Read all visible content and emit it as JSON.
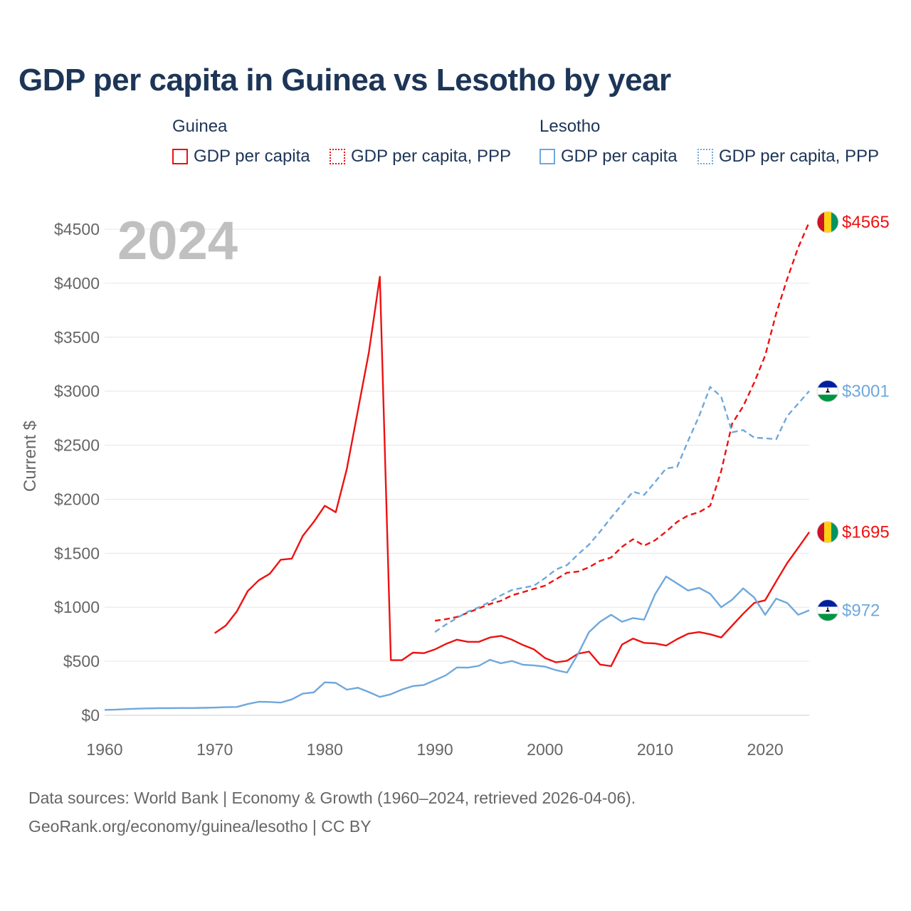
{
  "title": "GDP per capita in Guinea vs Lesotho by year",
  "legend": {
    "guinea": {
      "group": "Guinea",
      "gdp": "GDP per capita",
      "ppp": "GDP per capita, PPP"
    },
    "lesotho": {
      "group": "Lesotho",
      "gdp": "GDP per capita",
      "ppp": "GDP per capita, PPP"
    }
  },
  "year_label": "2024",
  "footer": {
    "line1": "Data sources: World Bank | Economy & Growth (1960–2024, retrieved 2026-04-06).",
    "line2": "GeoRank.org/economy/guinea/lesotho | CC BY"
  },
  "colors": {
    "guinea": "#ee1111",
    "lesotho": "#6fa8dc",
    "title": "#1d3557",
    "axis_text": "#666666",
    "year_text": "#c0c0c0"
  },
  "icons": {
    "guinea": "guinea-flag-icon",
    "lesotho": "lesotho-flag-icon"
  },
  "chart_data": {
    "type": "line",
    "title": "GDP per capita in Guinea vs Lesotho by year",
    "xlabel": "",
    "ylabel": "Current $",
    "xlim": [
      1960,
      2024
    ],
    "ylim": [
      0,
      4500
    ],
    "x_ticks": [
      1960,
      1970,
      1980,
      1990,
      2000,
      2010,
      2020
    ],
    "y_ticks": [
      0,
      500,
      1000,
      1500,
      2000,
      2500,
      3000,
      3500,
      4000,
      4500
    ],
    "y_tick_labels": [
      "$0",
      "$500",
      "$1000",
      "$1500",
      "$2000",
      "$2500",
      "$3000",
      "$3500",
      "$4000",
      "$4500"
    ],
    "grid": true,
    "series": [
      {
        "name": "Guinea GDP per capita",
        "country": "guinea",
        "style": "solid",
        "end_label": "$1695",
        "x": [
          1970,
          1971,
          1972,
          1973,
          1974,
          1975,
          1976,
          1977,
          1978,
          1979,
          1980,
          1981,
          1982,
          1983,
          1984,
          1985,
          1986,
          1987,
          1988,
          1989,
          1990,
          1991,
          1992,
          1993,
          1994,
          1995,
          1996,
          1997,
          1998,
          1999,
          2000,
          2001,
          2002,
          2003,
          2004,
          2005,
          2006,
          2007,
          2008,
          2009,
          2010,
          2011,
          2012,
          2013,
          2014,
          2015,
          2016,
          2017,
          2018,
          2019,
          2020,
          2021,
          2022,
          2023,
          2024
        ],
        "values": [
          760,
          830,
          960,
          1150,
          1250,
          1310,
          1440,
          1450,
          1660,
          1790,
          1940,
          1880,
          2280,
          2820,
          3360,
          4060,
          510,
          510,
          580,
          575,
          610,
          660,
          700,
          680,
          680,
          720,
          735,
          700,
          650,
          610,
          530,
          490,
          505,
          570,
          590,
          470,
          455,
          655,
          710,
          670,
          665,
          645,
          705,
          755,
          770,
          750,
          720,
          830,
          940,
          1040,
          1065,
          1240,
          1410,
          1550,
          1695
        ]
      },
      {
        "name": "Guinea GDP per capita, PPP",
        "country": "guinea",
        "style": "dashed",
        "end_label": "$4565",
        "x": [
          1990,
          1991,
          1992,
          1993,
          1994,
          1995,
          1996,
          1997,
          1998,
          1999,
          2000,
          2001,
          2002,
          2003,
          2004,
          2005,
          2006,
          2007,
          2008,
          2009,
          2010,
          2011,
          2012,
          2013,
          2014,
          2015,
          2016,
          2017,
          2018,
          2019,
          2020,
          2021,
          2022,
          2023,
          2024
        ],
        "values": [
          875,
          890,
          910,
          950,
          990,
          1030,
          1060,
          1110,
          1140,
          1170,
          1200,
          1260,
          1320,
          1330,
          1370,
          1430,
          1460,
          1560,
          1630,
          1570,
          1620,
          1700,
          1790,
          1850,
          1880,
          1940,
          2260,
          2700,
          2860,
          3080,
          3330,
          3720,
          4040,
          4330,
          4565
        ]
      },
      {
        "name": "Lesotho GDP per capita",
        "country": "lesotho",
        "style": "solid",
        "end_label": "$972",
        "x": [
          1960,
          1961,
          1962,
          1963,
          1964,
          1965,
          1966,
          1967,
          1968,
          1969,
          1970,
          1971,
          1972,
          1973,
          1974,
          1975,
          1976,
          1977,
          1978,
          1979,
          1980,
          1981,
          1982,
          1983,
          1984,
          1985,
          1986,
          1987,
          1988,
          1989,
          1990,
          1991,
          1992,
          1993,
          1994,
          1995,
          1996,
          1997,
          1998,
          1999,
          2000,
          2001,
          2002,
          2003,
          2004,
          2005,
          2006,
          2007,
          2008,
          2009,
          2010,
          2011,
          2012,
          2013,
          2014,
          2015,
          2016,
          2017,
          2018,
          2019,
          2020,
          2021,
          2022,
          2023,
          2024
        ],
        "values": [
          50,
          52,
          57,
          61,
          64,
          66,
          66,
          67,
          67,
          69,
          71,
          75,
          77,
          104,
          125,
          123,
          117,
          147,
          200,
          212,
          305,
          300,
          237,
          255,
          215,
          170,
          195,
          238,
          270,
          281,
          325,
          370,
          443,
          441,
          458,
          514,
          481,
          503,
          468,
          462,
          450,
          418,
          395,
          568,
          770,
          866,
          930,
          866,
          900,
          885,
          1120,
          1285,
          1220,
          1155,
          1180,
          1125,
          1000,
          1070,
          1175,
          1090,
          930,
          1080,
          1040,
          930,
          972
        ]
      },
      {
        "name": "Lesotho GDP per capita, PPP",
        "country": "lesotho",
        "style": "dashed",
        "end_label": "$3001",
        "x": [
          1990,
          1991,
          1992,
          1993,
          1994,
          1995,
          1996,
          1997,
          1998,
          1999,
          2000,
          2001,
          2002,
          2003,
          2004,
          2005,
          2006,
          2007,
          2008,
          2009,
          2010,
          2011,
          2012,
          2013,
          2014,
          2015,
          2016,
          2017,
          2018,
          2019,
          2020,
          2021,
          2022,
          2023,
          2024
        ],
        "values": [
          770,
          840,
          900,
          960,
          1000,
          1050,
          1110,
          1160,
          1180,
          1200,
          1270,
          1350,
          1390,
          1490,
          1580,
          1700,
          1830,
          1950,
          2070,
          2040,
          2160,
          2285,
          2300,
          2540,
          2770,
          3040,
          2950,
          2620,
          2640,
          2570,
          2565,
          2555,
          2770,
          2885,
          3001
        ]
      }
    ]
  }
}
